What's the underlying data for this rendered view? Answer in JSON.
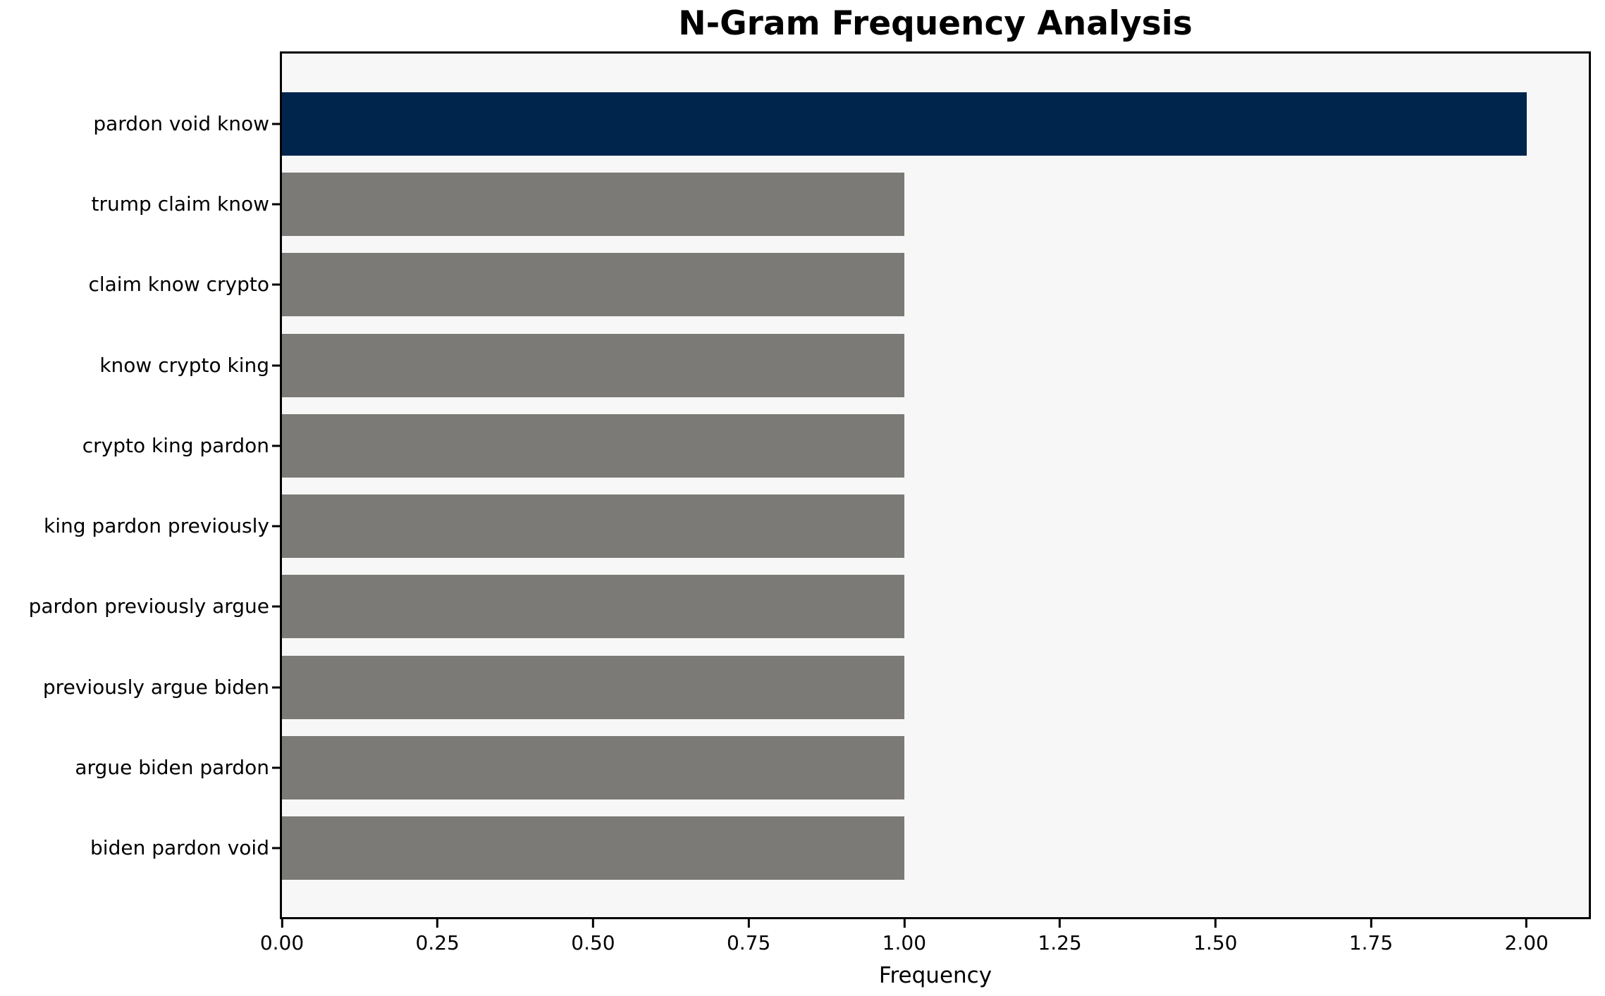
{
  "figure": {
    "title": "N-Gram Frequency Analysis",
    "xlabel": "Frequency"
  },
  "colors": {
    "highlight_bar": "#00254d",
    "default_bar": "#7c7a76",
    "plot_background": "#f7f7f7",
    "figure_background": "#ffffff",
    "axis": "#000000",
    "text": "#000000"
  },
  "chart_data": {
    "type": "bar",
    "orientation": "horizontal",
    "title": "N-Gram Frequency Analysis",
    "xlabel": "Frequency",
    "ylabel": "",
    "categories": [
      "pardon void know",
      "trump claim know",
      "claim know crypto",
      "know crypto king",
      "crypto king pardon",
      "king pardon previously",
      "pardon previously argue",
      "previously argue biden",
      "argue biden pardon",
      "biden pardon void"
    ],
    "values": [
      2,
      1,
      1,
      1,
      1,
      1,
      1,
      1,
      1,
      1
    ],
    "highlight_index": 0,
    "xlim": [
      0,
      2.1
    ],
    "xticks": [
      0.0,
      0.25,
      0.5,
      0.75,
      1.0,
      1.25,
      1.5,
      1.75,
      2.0
    ],
    "xtick_labels": [
      "0.00",
      "0.25",
      "0.50",
      "0.75",
      "1.00",
      "1.25",
      "1.50",
      "1.75",
      "2.00"
    ],
    "grid": false,
    "legend_position": "none"
  }
}
